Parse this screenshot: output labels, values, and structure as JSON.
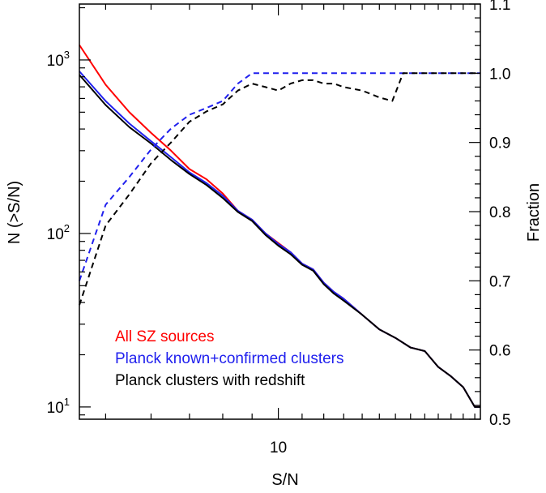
{
  "chart_data": {
    "type": "line",
    "xlabel": "S/N",
    "ylabel_left": "N (>S/N)",
    "ylabel_right": "Fraction",
    "x_scale": "log",
    "y_left_scale": "log",
    "xlim": [
      4.5,
      22.5
    ],
    "ylim_left": [
      8.5,
      2100
    ],
    "ylim_right": [
      0.5,
      1.1
    ],
    "x_ticks": [
      {
        "value": 10,
        "label": "10"
      }
    ],
    "y_left_ticks": [
      {
        "value": 10,
        "base": "10",
        "exp": "1"
      },
      {
        "value": 100,
        "base": "10",
        "exp": "2"
      },
      {
        "value": 1000,
        "base": "10",
        "exp": "3"
      }
    ],
    "y_right_ticks": [
      "0.5",
      "0.6",
      "0.7",
      "0.8",
      "0.9",
      "1.0",
      "1.1"
    ],
    "grid": false,
    "legend_position": "bottom-left",
    "series": [
      {
        "name": "All SZ sources",
        "axis": "left",
        "style": "solid",
        "color": "#ff0000",
        "x": [
          4.5,
          5,
          5.5,
          6,
          6.5,
          7,
          7.5,
          8,
          8.5,
          9,
          9.5,
          10,
          10.5,
          11,
          11.5,
          12,
          12.5,
          13,
          14,
          15,
          16,
          17,
          18,
          19,
          20,
          21,
          22,
          22.5
        ],
        "y": [
          1220,
          720,
          500,
          380,
          300,
          235,
          205,
          170,
          135,
          120,
          100,
          88,
          78,
          67,
          62,
          52,
          46,
          42,
          34,
          28,
          25,
          22,
          21,
          17,
          15,
          13,
          10,
          10
        ]
      },
      {
        "name": "Planck known+confirmed clusters",
        "axis": "left",
        "style": "solid",
        "color": "#2020ee",
        "x": [
          4.5,
          5,
          5.5,
          6,
          6.5,
          7,
          7.5,
          8,
          8.5,
          9,
          9.5,
          10,
          10.5,
          11,
          11.5,
          12,
          12.5,
          13,
          14,
          15,
          16,
          17,
          18,
          19,
          20,
          21,
          22,
          22.5
        ],
        "y": [
          860,
          580,
          430,
          340,
          275,
          225,
          195,
          165,
          135,
          120,
          100,
          87,
          78,
          67,
          62,
          52,
          46,
          42,
          34,
          28,
          25,
          22,
          21,
          17,
          15,
          13,
          10,
          10
        ]
      },
      {
        "name": "Planck clusters with redshift",
        "axis": "left",
        "style": "solid",
        "color": "#000000",
        "x": [
          4.5,
          5,
          5.5,
          6,
          6.5,
          7,
          7.5,
          8,
          8.5,
          9,
          9.5,
          10,
          10.5,
          11,
          11.5,
          12,
          12.5,
          13,
          14,
          15,
          16,
          17,
          18,
          19,
          20,
          21,
          22,
          22.5
        ],
        "y": [
          820,
          550,
          410,
          330,
          265,
          220,
          190,
          160,
          133,
          118,
          98,
          85,
          76,
          66,
          61,
          51,
          45,
          41,
          34,
          28,
          25,
          22,
          21,
          17,
          15,
          13,
          10,
          10
        ]
      },
      {
        "name": "Planck known+confirmed clusters",
        "axis": "right",
        "style": "dashed",
        "color": "#2020ee",
        "x": [
          4.5,
          5,
          5.5,
          6,
          6.5,
          7,
          7.5,
          8,
          8.5,
          9,
          9.5,
          10,
          10.5,
          11,
          11.5,
          12,
          12.5,
          13,
          14,
          15,
          16,
          17,
          18,
          19,
          20,
          21,
          22,
          22.5
        ],
        "y": [
          0.7,
          0.81,
          0.85,
          0.89,
          0.92,
          0.94,
          0.95,
          0.96,
          0.985,
          1.0,
          1.0,
          1.0,
          1.0,
          1.0,
          1.0,
          1.0,
          1.0,
          1.0,
          1.0,
          1.0,
          1.0,
          1.0,
          1.0,
          1.0,
          1.0,
          1.0,
          1.0,
          1.0
        ]
      },
      {
        "name": "Planck clusters with redshift",
        "axis": "right",
        "style": "dashed",
        "color": "#000000",
        "x": [
          4.5,
          5,
          5.5,
          6,
          6.5,
          7,
          7.5,
          8,
          8.5,
          9,
          9.5,
          10,
          10.5,
          11,
          11.5,
          12,
          12.5,
          13,
          14,
          15,
          15.8,
          16.5,
          17,
          18,
          19,
          20,
          21,
          22,
          22.5
        ],
        "y": [
          0.665,
          0.78,
          0.825,
          0.87,
          0.9,
          0.93,
          0.945,
          0.955,
          0.975,
          0.985,
          0.98,
          0.975,
          0.985,
          0.99,
          0.99,
          0.985,
          0.985,
          0.98,
          0.975,
          0.965,
          0.96,
          1.0,
          1.0,
          1.0,
          1.0,
          1.0,
          1.0,
          1.0,
          1.0
        ]
      }
    ]
  },
  "legend": [
    {
      "label": "All SZ sources",
      "color": "#ff0000"
    },
    {
      "label": "Planck known+confirmed clusters",
      "color": "#2020ee"
    },
    {
      "label": "Planck clusters with redshift",
      "color": "#000000"
    }
  ]
}
